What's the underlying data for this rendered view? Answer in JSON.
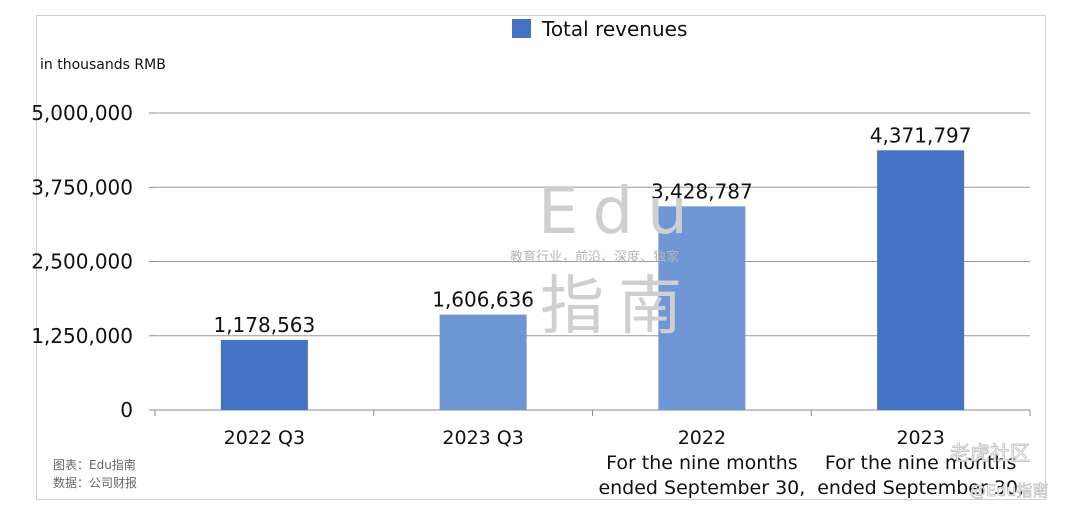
{
  "chart_data": {
    "type": "bar",
    "categories": [
      [
        "2022 Q3"
      ],
      [
        "2023 Q3"
      ],
      [
        "2022",
        "For the nine months",
        "ended September 30,"
      ],
      [
        "2023",
        "For the nine months",
        "ended September 30,"
      ]
    ],
    "series": [
      {
        "name": "Total revenues",
        "values": [
          1178563,
          1606636,
          3428787,
          4371797
        ]
      }
    ],
    "data_labels": [
      "1,178,563",
      "1,606,636",
      "3,428,787",
      "4,371,797"
    ],
    "ylabel": "in thousands RMB",
    "ylim": [
      0,
      5000000
    ],
    "yticks": [
      0,
      1250000,
      2500000,
      3750000,
      5000000
    ],
    "ytick_labels": [
      "0",
      "1,250,000",
      "2,500,000",
      "3,750,000",
      "5,000,000"
    ],
    "grid": true,
    "legend": "top-center",
    "colors": {
      "q_bars": "#4472c4",
      "q_bars_2023": "#6c95d4",
      "nine_month_2022": "#6f96d5",
      "nine_month_2023": "#4472c4",
      "legend": "#4472c4"
    }
  },
  "watermark": {
    "brand": "Edu",
    "brand_cn": "指南",
    "tagline": "教育行业，前沿、深度、独家",
    "corner_1": "老虎社区",
    "corner_2": "@Edu指南"
  },
  "source": {
    "line1": "图表：Edu指南",
    "line2": "数据：公司财报"
  }
}
